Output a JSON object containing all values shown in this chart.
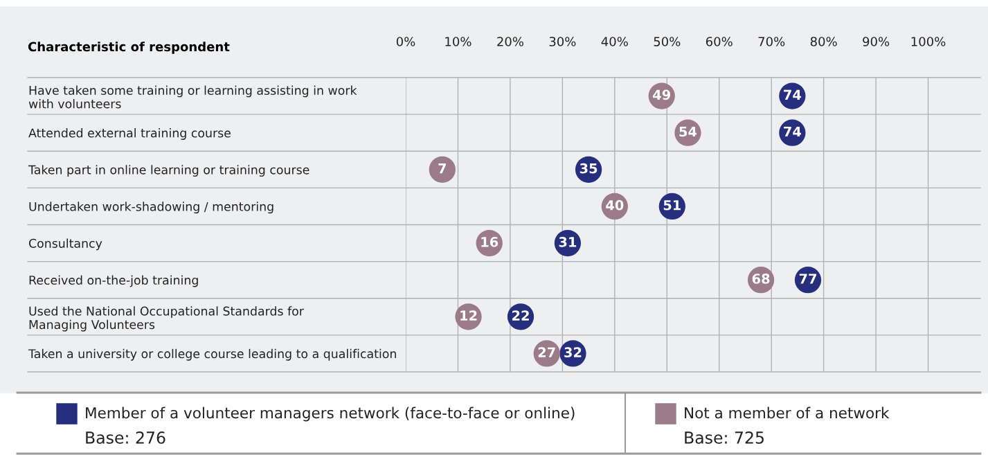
{
  "chart_data": {
    "type": "scatter",
    "orientation": "horizontal",
    "categories": [
      "Have taken some training or learning assisting in work\nwith volunteers",
      "Attended external training course",
      "Taken part in online learning or training course",
      "Undertaken work-shadowing / mentoring",
      "Consultancy",
      "Received on-the-job training",
      "Used the National Occupational Standards for\nManaging Volunteers",
      "Taken a university or college course leading to a qualification"
    ],
    "series": [
      {
        "name": "Member of a volunteer managers network (face-to-face or online)",
        "color": "#262f7e",
        "values": [
          74,
          74,
          35,
          51,
          31,
          77,
          22,
          32
        ]
      },
      {
        "name": "Not a member of a network",
        "color": "#9b7b88",
        "values": [
          49,
          54,
          7,
          40,
          16,
          68,
          12,
          27
        ]
      }
    ],
    "annotations": [
      "Characteristic of respondent",
      "Base: 276",
      "Base: 725"
    ],
    "xlim": [
      0,
      110
    ],
    "xticks": [
      {
        "value": 0,
        "label": "0%"
      },
      {
        "value": 10,
        "label": "10%"
      },
      {
        "value": 20,
        "label": "20%"
      },
      {
        "value": 30,
        "label": "30%"
      },
      {
        "value": 40,
        "label": "40%"
      },
      {
        "value": 50,
        "label": "50%"
      },
      {
        "value": 60,
        "label": "60%"
      },
      {
        "value": 70,
        "label": "70%"
      },
      {
        "value": 80,
        "label": "80%"
      },
      {
        "value": 90,
        "label": "90%"
      },
      {
        "value": 100,
        "label": "100%"
      }
    ],
    "grid": "x",
    "marker": "circle",
    "data_labels": true,
    "legend": "bottom"
  }
}
